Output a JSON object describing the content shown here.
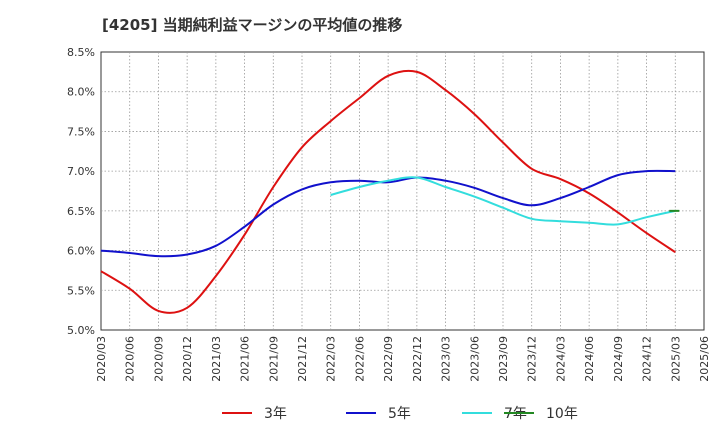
{
  "chart_data": {
    "type": "line",
    "title": "[4205]  当期純利益マージンの平均値の推移",
    "xlabel": "",
    "ylabel": "",
    "ylim": [
      5.0,
      8.5
    ],
    "y_ticks": [
      "5.0%",
      "5.5%",
      "6.0%",
      "6.5%",
      "7.0%",
      "7.5%",
      "8.0%",
      "8.5%"
    ],
    "categories": [
      "2020/03",
      "2020/06",
      "2020/09",
      "2020/12",
      "2021/03",
      "2021/06",
      "2021/09",
      "2021/12",
      "2022/03",
      "2022/06",
      "2022/09",
      "2022/12",
      "2023/03",
      "2023/06",
      "2023/09",
      "2023/12",
      "2024/03",
      "2024/06",
      "2024/09",
      "2024/12",
      "2025/03",
      "2025/06"
    ],
    "grid": true,
    "legend_position": "bottom",
    "series": [
      {
        "name": "3年",
        "color": "#dd1111",
        "values": [
          5.74,
          5.52,
          5.24,
          5.28,
          5.68,
          6.2,
          6.8,
          7.3,
          7.63,
          7.92,
          8.2,
          8.25,
          8.02,
          7.72,
          7.36,
          7.03,
          6.9,
          6.72,
          6.48,
          6.22,
          5.98,
          null
        ]
      },
      {
        "name": "5年",
        "color": "#1111cc",
        "values": [
          6.0,
          5.97,
          5.93,
          5.95,
          6.06,
          6.3,
          6.58,
          6.77,
          6.86,
          6.88,
          6.86,
          6.92,
          6.88,
          6.79,
          6.66,
          6.57,
          6.66,
          6.8,
          6.95,
          7.0,
          7.0,
          null
        ]
      },
      {
        "name": "7年",
        "color": "#33dddd",
        "values": [
          null,
          null,
          null,
          null,
          null,
          null,
          null,
          null,
          6.7,
          6.8,
          6.88,
          6.92,
          6.8,
          6.68,
          6.54,
          6.4,
          6.37,
          6.35,
          6.33,
          6.42,
          6.5,
          null
        ]
      },
      {
        "name": "10年",
        "color": "#228822",
        "values": [
          null,
          null,
          null,
          null,
          null,
          null,
          null,
          null,
          null,
          null,
          null,
          null,
          null,
          null,
          null,
          null,
          null,
          null,
          null,
          null,
          6.5,
          null
        ]
      }
    ]
  }
}
